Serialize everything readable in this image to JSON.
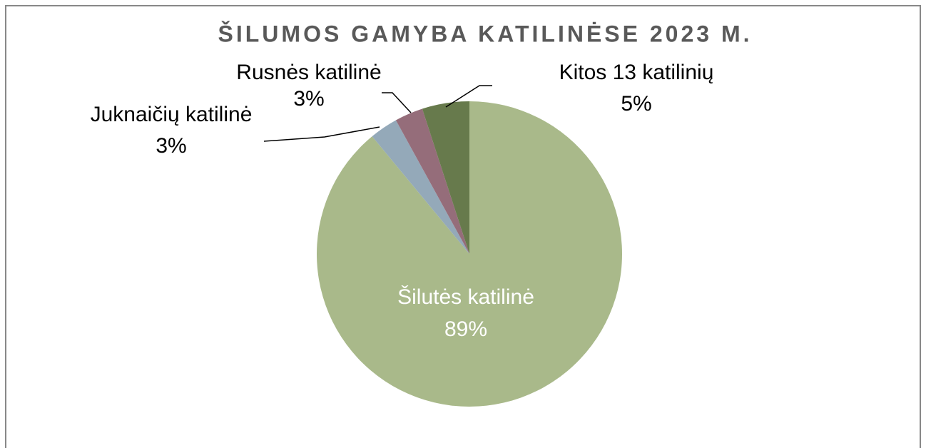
{
  "chart_data": {
    "type": "pie",
    "title": "ŠILUMOS GAMYBA KATILINĖSE 2023 M.",
    "categories": [
      "Šilutės katilinė",
      "Juknaičių katilinė",
      "Rusnės katilinė",
      "Kitos 13 katilinių"
    ],
    "values": [
      89,
      3,
      3,
      5
    ],
    "value_labels": [
      "89%",
      "3%",
      "3%",
      "5%"
    ],
    "colors": [
      "#a9b98a",
      "#94a9b9",
      "#956d7a",
      "#677a4c"
    ]
  }
}
